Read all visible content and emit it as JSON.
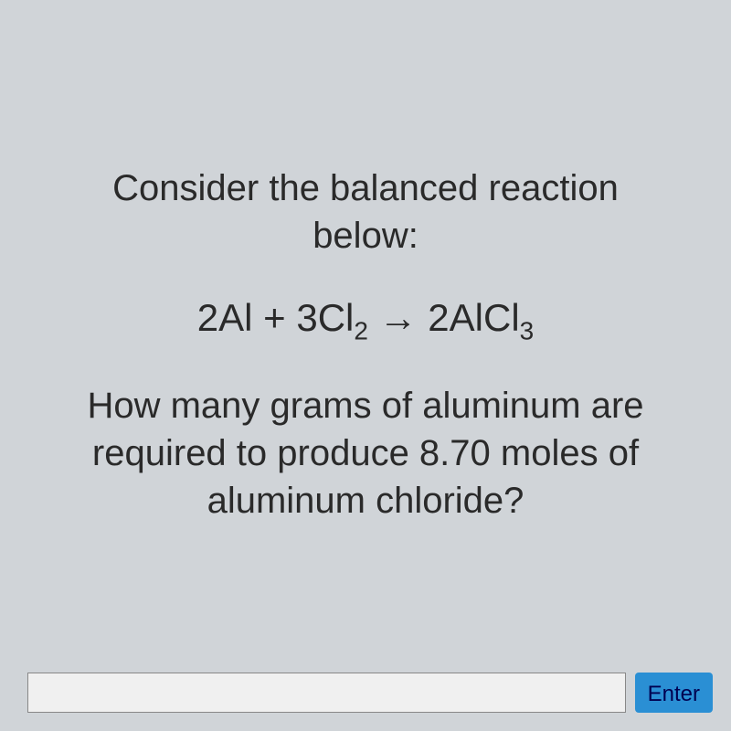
{
  "question": {
    "heading_line1": "Consider the balanced reaction",
    "heading_line2": "below:",
    "equation_parts": {
      "part1": "2Al + 3Cl",
      "sub1": "2",
      "arrow": " → ",
      "part2": "2AlCl",
      "sub2": "3"
    },
    "body_line1": "How many grams of aluminum are",
    "body_line2": "required to produce 8.70 moles of",
    "body_line3": "aluminum chloride?"
  },
  "input": {
    "value": "",
    "placeholder": ""
  },
  "buttons": {
    "enter_label": "Enter"
  },
  "colors": {
    "background": "#d0d4d8",
    "text": "#2a2a2a",
    "button_bg": "#2a8fd4",
    "button_text": "#000050",
    "input_bg": "#f0f0f0",
    "input_border": "#888"
  }
}
